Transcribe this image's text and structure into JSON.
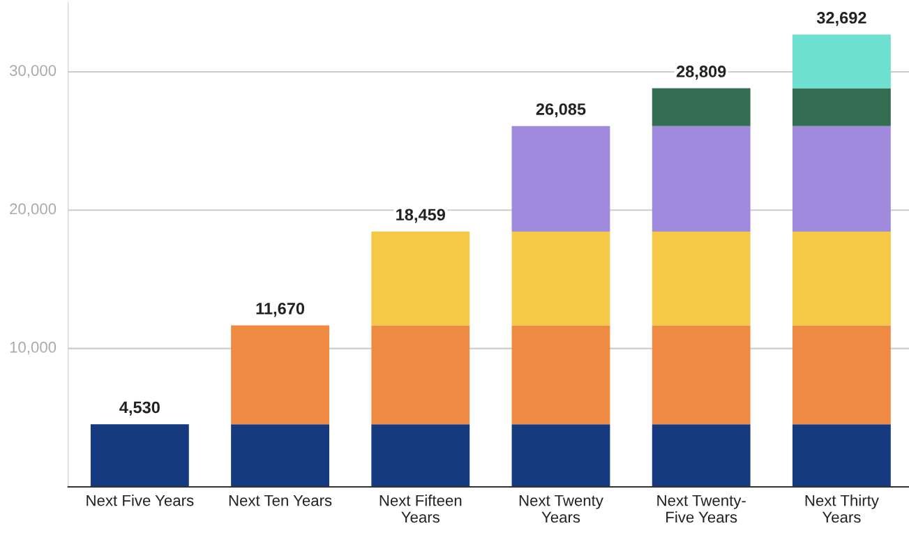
{
  "chart_data": {
    "type": "bar",
    "stacked": true,
    "categories": [
      "Next Five Years",
      "Next Ten Years",
      "Next Fifteen\nYears",
      "Next Twenty\nYears",
      "Next Twenty-\nFive Years",
      "Next Thirty\nYears"
    ],
    "series": [
      {
        "color": "#163a80",
        "values": [
          4530,
          4530,
          4530,
          4530,
          4530,
          4530
        ]
      },
      {
        "color": "#ef8a43",
        "values": [
          null,
          7140,
          7140,
          7140,
          7140,
          7140
        ]
      },
      {
        "color": "#f5c945",
        "values": [
          null,
          null,
          6789,
          6789,
          6789,
          6789
        ]
      },
      {
        "color": "#a08ade",
        "values": [
          null,
          null,
          null,
          7626,
          7626,
          7626
        ]
      },
      {
        "color": "#336e52",
        "values": [
          null,
          null,
          null,
          null,
          2724,
          2724
        ]
      },
      {
        "color": "#6de0cf",
        "values": [
          null,
          null,
          null,
          null,
          null,
          3883
        ]
      }
    ],
    "totals": [
      "4,530",
      "11,670",
      "18,459",
      "26,085",
      "28,809",
      "32,692"
    ],
    "ylim": [
      0,
      35000
    ],
    "yticks": [
      {
        "value": 0,
        "label": null
      },
      {
        "value": 10000,
        "label": "10,000"
      },
      {
        "value": 20000,
        "label": "20,000"
      },
      {
        "value": 30000,
        "label": "30,000"
      }
    ],
    "grid": "y"
  }
}
